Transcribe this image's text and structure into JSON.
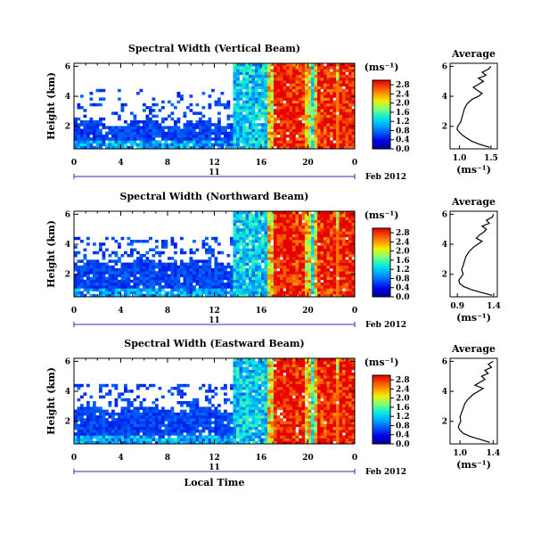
{
  "chart_data": [
    {
      "type": "heatmap",
      "title": "Spectral Width (Vertical Beam)",
      "ylabel": "Height (km)",
      "x_ticks": [
        "0",
        "4",
        "8",
        "12",
        "16",
        "20",
        "0"
      ],
      "y_ticks": [
        "2",
        "4",
        "6"
      ],
      "xlim": [
        0,
        24
      ],
      "ylim": [
        0.5,
        6.2
      ],
      "day_label": "11",
      "date_label": "Feb 2012",
      "colorbar": {
        "unit": "(ms⁻¹)",
        "ticks": [
          "0.0",
          "0.4",
          "0.8",
          "1.2",
          "1.6",
          "2.0",
          "2.4",
          "2.8"
        ],
        "range": [
          0.0,
          3.0
        ]
      },
      "profile": {
        "title": "Average",
        "xlabel": "(ms⁻¹)",
        "x_ticks": [
          "1.0",
          "1.5"
        ],
        "xlim": [
          0.85,
          1.6
        ],
        "y_ticks": [
          "2",
          "4",
          "6"
        ],
        "points": [
          [
            1.48,
            0.6
          ],
          [
            1.32,
            0.8
          ],
          [
            1.2,
            1.0
          ],
          [
            1.12,
            1.2
          ],
          [
            1.05,
            1.4
          ],
          [
            1.0,
            1.6
          ],
          [
            0.96,
            1.8
          ],
          [
            0.97,
            2.0
          ],
          [
            1.02,
            2.3
          ],
          [
            1.04,
            2.6
          ],
          [
            1.06,
            2.9
          ],
          [
            1.08,
            3.2
          ],
          [
            1.12,
            3.5
          ],
          [
            1.2,
            3.8
          ],
          [
            1.3,
            4.0
          ],
          [
            1.36,
            4.2
          ],
          [
            1.28,
            4.4
          ],
          [
            1.22,
            4.6
          ],
          [
            1.3,
            4.8
          ],
          [
            1.38,
            5.0
          ],
          [
            1.3,
            5.2
          ],
          [
            1.42,
            5.4
          ],
          [
            1.36,
            5.6
          ],
          [
            1.46,
            5.8
          ],
          [
            1.5,
            6.0
          ]
        ]
      }
    },
    {
      "type": "heatmap",
      "title": "Spectral Width (Northward Beam)",
      "ylabel": "Height (km)",
      "x_ticks": [
        "0",
        "4",
        "8",
        "12",
        "16",
        "20",
        "0"
      ],
      "y_ticks": [
        "2",
        "4",
        "6"
      ],
      "xlim": [
        0,
        24
      ],
      "ylim": [
        0.5,
        6.2
      ],
      "day_label": "11",
      "date_label": "Feb 2012",
      "colorbar": {
        "unit": "(ms⁻¹)",
        "ticks": [
          "0.0",
          "0.4",
          "0.8",
          "1.2",
          "1.6",
          "2.0",
          "2.4",
          "2.8"
        ],
        "range": [
          0.0,
          3.0
        ]
      },
      "profile": {
        "title": "Average",
        "xlabel": "(ms⁻¹)",
        "x_ticks": [
          "0.9",
          "1.4"
        ],
        "xlim": [
          0.8,
          1.45
        ],
        "y_ticks": [
          "2",
          "4",
          "6"
        ],
        "points": [
          [
            1.38,
            0.6
          ],
          [
            1.22,
            0.8
          ],
          [
            1.08,
            1.0
          ],
          [
            0.98,
            1.2
          ],
          [
            0.93,
            1.4
          ],
          [
            0.92,
            1.6
          ],
          [
            0.95,
            1.8
          ],
          [
            0.98,
            2.0
          ],
          [
            0.96,
            2.3
          ],
          [
            0.98,
            2.6
          ],
          [
            1.0,
            2.9
          ],
          [
            1.02,
            3.2
          ],
          [
            1.06,
            3.5
          ],
          [
            1.12,
            3.8
          ],
          [
            1.18,
            4.0
          ],
          [
            1.24,
            4.2
          ],
          [
            1.16,
            4.4
          ],
          [
            1.2,
            4.6
          ],
          [
            1.26,
            4.8
          ],
          [
            1.3,
            5.0
          ],
          [
            1.24,
            5.2
          ],
          [
            1.34,
            5.4
          ],
          [
            1.3,
            5.6
          ],
          [
            1.38,
            5.8
          ],
          [
            1.4,
            6.0
          ]
        ]
      }
    },
    {
      "type": "heatmap",
      "title": "Spectral Width (Eastward Beam)",
      "ylabel": "Height (km)",
      "xlabel": "Local Time",
      "x_ticks": [
        "0",
        "4",
        "8",
        "12",
        "16",
        "20",
        "0"
      ],
      "y_ticks": [
        "2",
        "4",
        "6"
      ],
      "xlim": [
        0,
        24
      ],
      "ylim": [
        0.5,
        6.2
      ],
      "day_label": "11",
      "date_label": "Feb 2012",
      "colorbar": {
        "unit": "(ms⁻¹)",
        "ticks": [
          "0.0",
          "0.4",
          "0.8",
          "1.2",
          "1.6",
          "2.0",
          "2.4",
          "2.8"
        ],
        "range": [
          0.0,
          3.0
        ]
      },
      "profile": {
        "title": "Average",
        "xlabel": "(ms⁻¹)",
        "x_ticks": [
          "1.0",
          "1.4"
        ],
        "xlim": [
          0.88,
          1.45
        ],
        "y_ticks": [
          "2",
          "4",
          "6"
        ],
        "points": [
          [
            1.36,
            0.6
          ],
          [
            1.24,
            0.8
          ],
          [
            1.12,
            1.0
          ],
          [
            1.04,
            1.2
          ],
          [
            1.0,
            1.4
          ],
          [
            0.98,
            1.6
          ],
          [
            0.99,
            1.8
          ],
          [
            1.01,
            2.0
          ],
          [
            1.0,
            2.3
          ],
          [
            1.02,
            2.6
          ],
          [
            1.04,
            2.9
          ],
          [
            1.06,
            3.2
          ],
          [
            1.1,
            3.5
          ],
          [
            1.16,
            3.8
          ],
          [
            1.22,
            4.0
          ],
          [
            1.28,
            4.2
          ],
          [
            1.18,
            4.4
          ],
          [
            1.24,
            4.6
          ],
          [
            1.3,
            4.8
          ],
          [
            1.26,
            5.0
          ],
          [
            1.34,
            5.2
          ],
          [
            1.3,
            5.4
          ],
          [
            1.38,
            5.6
          ],
          [
            1.34,
            5.8
          ],
          [
            1.4,
            6.0
          ]
        ]
      }
    }
  ]
}
